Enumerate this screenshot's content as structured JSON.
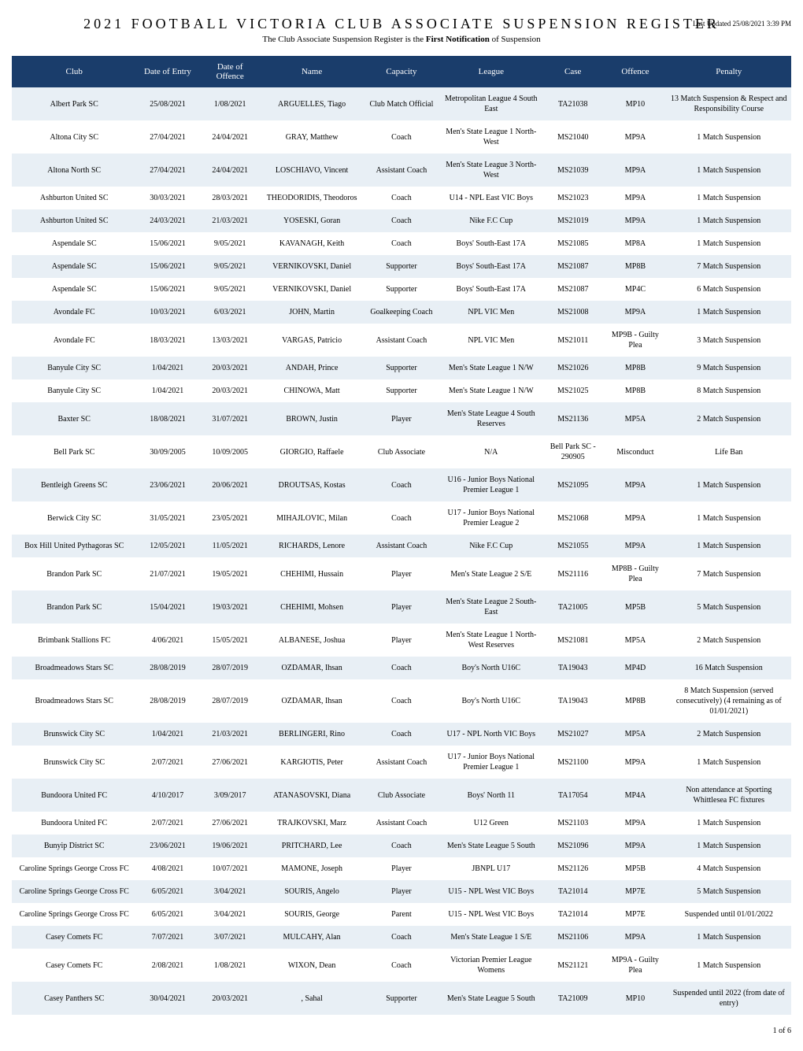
{
  "header": {
    "title": "2021 FOOTBALL VICTORIA CLUB ASSOCIATE SUSPENSION REGISTER",
    "subtitle_pre": "The Club Associate Suspension Register is the ",
    "subtitle_bold": "First Notification",
    "subtitle_post": " of Suspension",
    "updated": "Last Updated 25/08/2021 3:39 PM"
  },
  "columns": [
    "Club",
    "Date of Entry",
    "Date of Offence",
    "Name",
    "Capacity",
    "League",
    "Case",
    "Offence",
    "Penalty"
  ],
  "rows": [
    [
      "Albert Park SC",
      "25/08/2021",
      "1/08/2021",
      "ARGUELLES, Tiago",
      "Club Match Official",
      "Metropolitan League 4 South East",
      "TA21038",
      "MP10",
      "13 Match Suspension & Respect and Responsibility Course"
    ],
    [
      "Altona City SC",
      "27/04/2021",
      "24/04/2021",
      "GRAY, Matthew",
      "Coach",
      "Men's State League 1 North-West",
      "MS21040",
      "MP9A",
      "1 Match Suspension"
    ],
    [
      "Altona North SC",
      "27/04/2021",
      "24/04/2021",
      "LOSCHIAVO, Vincent",
      "Assistant Coach",
      "Men's State League 3 North-West",
      "MS21039",
      "MP9A",
      "1 Match Suspension"
    ],
    [
      "Ashburton United SC",
      "30/03/2021",
      "28/03/2021",
      "THEODORIDIS, Theodoros",
      "Coach",
      "U14 - NPL East VIC Boys",
      "MS21023",
      "MP9A",
      "1 Match Suspension"
    ],
    [
      "Ashburton United SC",
      "24/03/2021",
      "21/03/2021",
      "YOSESKI, Goran",
      "Coach",
      "Nike F.C Cup",
      "MS21019",
      "MP9A",
      "1 Match Suspension"
    ],
    [
      "Aspendale SC",
      "15/06/2021",
      "9/05/2021",
      "KAVANAGH, Keith",
      "Coach",
      "Boys' South-East 17A",
      "MS21085",
      "MP8A",
      "1 Match Suspension"
    ],
    [
      "Aspendale SC",
      "15/06/2021",
      "9/05/2021",
      "VERNIKOVSKI, Daniel",
      "Supporter",
      "Boys' South-East 17A",
      "MS21087",
      "MP8B",
      "7 Match Suspension"
    ],
    [
      "Aspendale SC",
      "15/06/2021",
      "9/05/2021",
      "VERNIKOVSKI, Daniel",
      "Supporter",
      "Boys' South-East 17A",
      "MS21087",
      "MP4C",
      "6 Match Suspension"
    ],
    [
      "Avondale FC",
      "10/03/2021",
      "6/03/2021",
      "JOHN, Martin",
      "Goalkeeping Coach",
      "NPL VIC Men",
      "MS21008",
      "MP9A",
      "1 Match Suspension"
    ],
    [
      "Avondale FC",
      "18/03/2021",
      "13/03/2021",
      "VARGAS, Patricio",
      "Assistant Coach",
      "NPL VIC Men",
      "MS21011",
      "MP9B - Guilty Plea",
      "3 Match Suspension"
    ],
    [
      "Banyule City SC",
      "1/04/2021",
      "20/03/2021",
      "ANDAH, Prince",
      "Supporter",
      "Men's State League 1 N/W",
      "MS21026",
      "MP8B",
      "9 Match Suspension"
    ],
    [
      "Banyule City SC",
      "1/04/2021",
      "20/03/2021",
      "CHINOWA, Matt",
      "Supporter",
      "Men's State League 1 N/W",
      "MS21025",
      "MP8B",
      "8 Match Suspension"
    ],
    [
      "Baxter SC",
      "18/08/2021",
      "31/07/2021",
      "BROWN, Justin",
      "Player",
      "Men's State League 4 South Reserves",
      "MS21136",
      "MP5A",
      "2 Match Suspension"
    ],
    [
      "Bell Park SC",
      "30/09/2005",
      "10/09/2005",
      "GIORGIO, Raffaele",
      "Club Associate",
      "N/A",
      "Bell Park SC - 290905",
      "Misconduct",
      "Life Ban"
    ],
    [
      "Bentleigh Greens SC",
      "23/06/2021",
      "20/06/2021",
      "DROUTSAS, Kostas",
      "Coach",
      "U16 - Junior Boys National Premier League 1",
      "MS21095",
      "MP9A",
      "1 Match Suspension"
    ],
    [
      "Berwick City SC",
      "31/05/2021",
      "23/05/2021",
      "MIHAJLOVIC, Milan",
      "Coach",
      "U17 - Junior Boys National Premier League 2",
      "MS21068",
      "MP9A",
      "1 Match Suspension"
    ],
    [
      "Box Hill United Pythagoras SC",
      "12/05/2021",
      "11/05/2021",
      "RICHARDS, Lenore",
      "Assistant Coach",
      "Nike F.C Cup",
      "MS21055",
      "MP9A",
      "1 Match Suspension"
    ],
    [
      "Brandon Park SC",
      "21/07/2021",
      "19/05/2021",
      "CHEHIMI, Hussain",
      "Player",
      "Men's State League 2 S/E",
      "MS21116",
      "MP8B - Guilty Plea",
      "7 Match Suspension"
    ],
    [
      "Brandon Park SC",
      "15/04/2021",
      "19/03/2021",
      "CHEHIMI, Mohsen",
      "Player",
      "Men's State League 2 South-East",
      "TA21005",
      "MP5B",
      "5 Match Suspension"
    ],
    [
      "Brimbank Stallions FC",
      "4/06/2021",
      "15/05/2021",
      "ALBANESE, Joshua",
      "Player",
      "Men's State League 1 North-West Reserves",
      "MS21081",
      "MP5A",
      "2 Match Suspension"
    ],
    [
      "Broadmeadows Stars SC",
      "28/08/2019",
      "28/07/2019",
      "OZDAMAR, Ihsan",
      "Coach",
      "Boy's North U16C",
      "TA19043",
      "MP4D",
      "16 Match Suspension"
    ],
    [
      "Broadmeadows Stars SC",
      "28/08/2019",
      "28/07/2019",
      "OZDAMAR, Ihsan",
      "Coach",
      "Boy's North U16C",
      "TA19043",
      "MP8B",
      "8 Match Suspension (served consecutively) (4 remaining as of 01/01/2021)"
    ],
    [
      "Brunswick City SC",
      "1/04/2021",
      "21/03/2021",
      "BERLINGERI, Rino",
      "Coach",
      "U17 - NPL North VIC Boys",
      "MS21027",
      "MP5A",
      "2 Match Suspension"
    ],
    [
      "Brunswick City SC",
      "2/07/2021",
      "27/06/2021",
      "KARGIOTIS, Peter",
      "Assistant Coach",
      "U17 - Junior Boys National Premier League 1",
      "MS21100",
      "MP9A",
      "1 Match Suspension"
    ],
    [
      "Bundoora United FC",
      "4/10/2017",
      "3/09/2017",
      "ATANASOVSKI, Diana",
      "Club Associate",
      "Boys' North 11",
      "TA17054",
      "MP4A",
      "Non attendance at Sporting Whittlesea FC fixtures"
    ],
    [
      "Bundoora United FC",
      "2/07/2021",
      "27/06/2021",
      "TRAJKOVSKI, Marz",
      "Assistant Coach",
      "U12 Green",
      "MS21103",
      "MP9A",
      "1 Match Suspension"
    ],
    [
      "Bunyip District SC",
      "23/06/2021",
      "19/06/2021",
      "PRITCHARD, Lee",
      "Coach",
      "Men's State League 5 South",
      "MS21096",
      "MP9A",
      "1 Match Suspension"
    ],
    [
      "Caroline Springs George Cross FC",
      "4/08/2021",
      "10/07/2021",
      "MAMONE, Joseph",
      "Player",
      "JBNPL U17",
      "MS21126",
      "MP5B",
      "4 Match Suspension"
    ],
    [
      "Caroline Springs George Cross FC",
      "6/05/2021",
      "3/04/2021",
      "SOURIS, Angelo",
      "Player",
      "U15 - NPL West VIC Boys",
      "TA21014",
      "MP7E",
      "5 Match Suspension"
    ],
    [
      "Caroline Springs George Cross FC",
      "6/05/2021",
      "3/04/2021",
      "SOURIS, George",
      "Parent",
      "U15 - NPL West VIC Boys",
      "TA21014",
      "MP7E",
      "Suspended until 01/01/2022"
    ],
    [
      "Casey Comets FC",
      "7/07/2021",
      "3/07/2021",
      "MULCAHY, Alan",
      "Coach",
      "Men's State League 1 S/E",
      "MS21106",
      "MP9A",
      "1 Match Suspension"
    ],
    [
      "Casey Comets FC",
      "2/08/2021",
      "1/08/2021",
      "WIXON, Dean",
      "Coach",
      "Victorian Premier League Womens",
      "MS21121",
      "MP9A - Guilty Plea",
      "1 Match Suspension"
    ],
    [
      "Casey Panthers SC",
      "30/04/2021",
      "20/03/2021",
      ", Sahal",
      "Supporter",
      "Men's State League 5 South",
      "TA21009",
      "MP10",
      "Suspended until 2022 (from date of entry)"
    ]
  ],
  "footer": "1 of 6"
}
